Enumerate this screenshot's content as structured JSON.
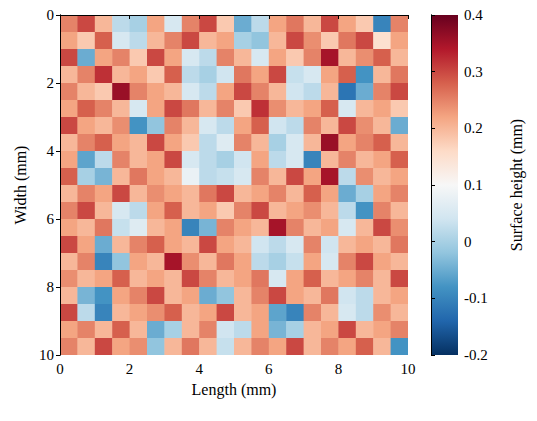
{
  "chart_data": {
    "type": "heatmap",
    "xlabel": "Length (mm)",
    "ylabel": "Width (mm)",
    "xlim": [
      0,
      10
    ],
    "ylim": [
      10,
      0
    ],
    "xticks": [
      0,
      2,
      4,
      6,
      8,
      10
    ],
    "yticks": [
      0,
      2,
      4,
      6,
      8,
      10
    ],
    "x": [
      0.25,
      0.75,
      1.25,
      1.75,
      2.25,
      2.75,
      3.25,
      3.75,
      4.25,
      4.75,
      5.25,
      5.75,
      6.25,
      6.75,
      7.25,
      7.75,
      8.25,
      8.75,
      9.25,
      9.75
    ],
    "y": [
      0.25,
      0.75,
      1.25,
      1.75,
      2.25,
      2.75,
      3.25,
      3.75,
      4.25,
      4.75,
      5.25,
      5.75,
      6.25,
      6.75,
      7.25,
      7.75,
      8.25,
      8.75,
      9.25,
      9.75
    ],
    "values": [
      [
        0.25,
        0.3,
        0.2,
        0.02,
        0.0,
        0.22,
        0.05,
        0.25,
        0.3,
        0.18,
        -0.05,
        0.02,
        0.22,
        0.26,
        0.2,
        0.3,
        0.22,
        0.18,
        -0.1,
        0.25
      ],
      [
        0.22,
        0.18,
        0.28,
        0.05,
        0.02,
        0.2,
        0.25,
        0.3,
        0.2,
        0.22,
        0.0,
        -0.02,
        0.2,
        0.3,
        0.24,
        0.18,
        0.26,
        0.3,
        0.15,
        0.22
      ],
      [
        0.3,
        -0.05,
        0.22,
        0.25,
        0.18,
        0.3,
        0.22,
        0.05,
        0.02,
        0.25,
        0.2,
        0.05,
        0.22,
        0.18,
        0.25,
        0.35,
        0.2,
        0.24,
        0.28,
        0.2
      ],
      [
        0.2,
        0.25,
        0.32,
        0.2,
        0.22,
        0.18,
        0.28,
        0.02,
        0.0,
        0.04,
        0.26,
        0.22,
        0.3,
        0.03,
        0.05,
        0.22,
        0.28,
        -0.08,
        0.2,
        0.26
      ],
      [
        0.25,
        0.2,
        0.18,
        0.36,
        0.25,
        0.22,
        0.2,
        0.05,
        0.02,
        0.22,
        0.3,
        0.25,
        0.2,
        0.04,
        0.02,
        0.2,
        -0.12,
        -0.05,
        0.25,
        0.3
      ],
      [
        0.22,
        0.28,
        0.25,
        0.2,
        0.05,
        0.22,
        0.3,
        0.26,
        0.2,
        0.25,
        0.18,
        0.32,
        0.24,
        0.2,
        0.22,
        0.28,
        0.05,
        0.2,
        0.22,
        0.18
      ],
      [
        0.3,
        0.22,
        0.2,
        0.24,
        -0.08,
        -0.02,
        0.25,
        0.2,
        0.05,
        0.02,
        0.22,
        0.28,
        0.04,
        0.02,
        0.25,
        0.2,
        0.3,
        0.24,
        0.2,
        -0.05
      ],
      [
        0.2,
        0.25,
        0.28,
        0.22,
        0.2,
        0.3,
        0.22,
        0.18,
        0.02,
        0.06,
        0.25,
        0.2,
        0.0,
        0.05,
        0.2,
        0.36,
        0.22,
        0.25,
        0.28,
        0.2
      ],
      [
        0.22,
        -0.06,
        0.02,
        0.25,
        0.2,
        0.22,
        0.3,
        0.05,
        0.02,
        0.0,
        0.04,
        0.22,
        0.02,
        0.05,
        -0.1,
        0.2,
        0.25,
        0.2,
        0.22,
        0.28
      ],
      [
        0.28,
        0.0,
        -0.04,
        0.2,
        0.26,
        0.22,
        0.2,
        0.08,
        0.02,
        0.03,
        0.05,
        0.25,
        0.2,
        0.3,
        0.22,
        0.35,
        0.02,
        0.24,
        0.2,
        0.22
      ],
      [
        0.2,
        0.25,
        0.22,
        0.3,
        0.2,
        0.24,
        0.22,
        0.2,
        0.26,
        0.3,
        0.2,
        0.22,
        0.25,
        0.2,
        0.28,
        0.22,
        -0.05,
        0.0,
        0.22,
        0.25
      ],
      [
        0.25,
        0.3,
        0.2,
        0.05,
        0.02,
        0.22,
        0.28,
        0.2,
        0.22,
        0.18,
        0.25,
        0.3,
        0.2,
        0.22,
        0.24,
        0.2,
        0.02,
        -0.08,
        0.25,
        0.2
      ],
      [
        0.22,
        0.2,
        0.26,
        0.03,
        0.06,
        0.2,
        0.22,
        -0.1,
        -0.04,
        0.25,
        0.22,
        0.2,
        0.35,
        0.25,
        0.2,
        0.22,
        0.05,
        0.2,
        0.3,
        0.24
      ],
      [
        0.3,
        0.22,
        -0.05,
        0.2,
        0.25,
        0.28,
        0.22,
        0.2,
        0.3,
        0.22,
        0.2,
        0.04,
        0.02,
        0.05,
        0.25,
        0.04,
        0.2,
        0.22,
        0.2,
        0.26
      ],
      [
        0.2,
        0.25,
        -0.1,
        -0.02,
        0.22,
        0.2,
        0.35,
        0.24,
        0.2,
        0.26,
        0.22,
        0.02,
        0.0,
        0.03,
        0.22,
        0.05,
        0.25,
        0.3,
        0.22,
        0.2
      ],
      [
        0.24,
        0.2,
        0.22,
        0.28,
        0.2,
        0.22,
        0.2,
        0.3,
        0.25,
        0.2,
        0.22,
        0.26,
        0.05,
        0.22,
        0.28,
        0.2,
        0.22,
        0.25,
        0.2,
        0.3
      ],
      [
        0.2,
        -0.04,
        -0.08,
        0.22,
        0.25,
        0.3,
        0.2,
        0.22,
        -0.05,
        -0.02,
        0.2,
        0.25,
        0.3,
        0.22,
        0.2,
        0.26,
        0.04,
        0.02,
        0.2,
        0.22
      ],
      [
        0.3,
        0.02,
        -0.1,
        0.2,
        0.22,
        0.24,
        0.28,
        0.2,
        0.22,
        0.3,
        0.2,
        0.22,
        -0.06,
        -0.1,
        0.25,
        0.2,
        0.05,
        0.02,
        0.24,
        0.2
      ],
      [
        0.22,
        0.25,
        0.2,
        0.28,
        0.2,
        -0.05,
        0.0,
        0.2,
        0.25,
        0.04,
        0.02,
        0.22,
        -0.04,
        0.0,
        0.2,
        0.22,
        0.3,
        0.2,
        0.22,
        0.25
      ],
      [
        0.25,
        0.2,
        0.3,
        0.22,
        0.24,
        -0.02,
        0.2,
        0.26,
        0.2,
        0.03,
        0.2,
        0.25,
        0.22,
        0.3,
        0.2,
        0.25,
        0.22,
        0.28,
        0.2,
        -0.08
      ]
    ],
    "colorbar": {
      "label": "Surface height (mm)",
      "range": [
        -0.2,
        0.4
      ],
      "ticks": [
        -0.2,
        -0.1,
        0,
        0.1,
        0.2,
        0.3,
        0.4
      ]
    }
  }
}
